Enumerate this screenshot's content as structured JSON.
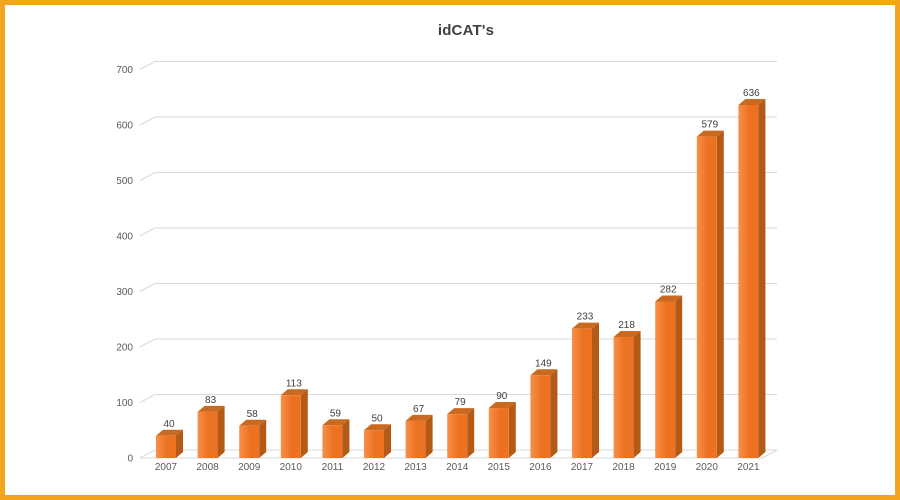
{
  "frame": {
    "border_color": "#F2A51C",
    "background": "#FFFFFF"
  },
  "chart_data": {
    "type": "bar",
    "style": "3d-column",
    "title": "idCAT's",
    "categories": [
      "2007",
      "2008",
      "2009",
      "2010",
      "2011",
      "2012",
      "2013",
      "2014",
      "2015",
      "2016",
      "2017",
      "2018",
      "2019",
      "2020",
      "2021"
    ],
    "values": [
      40,
      83,
      58,
      113,
      59,
      50,
      67,
      79,
      90,
      149,
      233,
      218,
      282,
      579,
      636
    ],
    "data_labels_visible": true,
    "ylim": [
      0,
      700
    ],
    "yticks": [
      0,
      100,
      200,
      300,
      400,
      500,
      600,
      700
    ],
    "grid": true,
    "legend": false,
    "colors": {
      "bar_front_light": "#F89049",
      "bar_front": "#EC7120",
      "bar_side": "#B25A16",
      "bar_top": "#C96A20",
      "gridline": "#D9D9D9",
      "axis_label": "#595959",
      "data_label": "#404040",
      "title": "#404040"
    }
  }
}
